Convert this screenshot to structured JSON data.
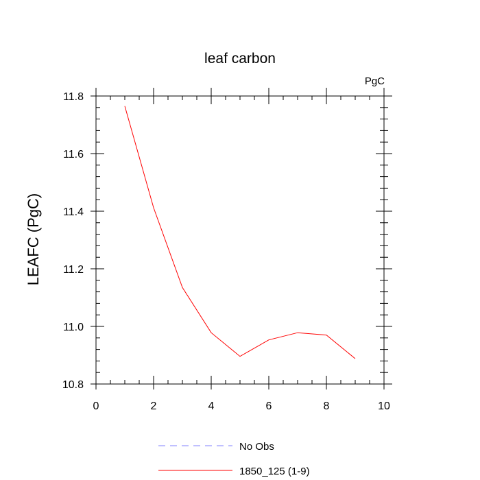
{
  "chart_data": {
    "type": "line",
    "title": "leaf carbon",
    "units": "PgC",
    "ylabel": "LEAFC  (PgC)",
    "xlabel": "",
    "xlim": [
      0,
      10
    ],
    "ylim": [
      10.8,
      11.8
    ],
    "xticks": [
      "0",
      "2",
      "4",
      "6",
      "8",
      "10"
    ],
    "yticks": [
      "10.8",
      "11.0",
      "11.2",
      "11.4",
      "11.6",
      "11.8"
    ],
    "grid": false,
    "legend_position": "bottom",
    "series": [
      {
        "name": "No Obs",
        "color": "#8080ff",
        "dash": "dashed",
        "x": [],
        "y": []
      },
      {
        "name": "1850_125 (1-9)",
        "color": "#ff0000",
        "dash": "solid",
        "x": [
          1,
          2,
          3,
          4,
          5,
          6,
          7,
          8,
          9
        ],
        "y": [
          11.765,
          11.412,
          11.135,
          10.978,
          10.896,
          10.953,
          10.978,
          10.97,
          10.888
        ]
      }
    ]
  }
}
